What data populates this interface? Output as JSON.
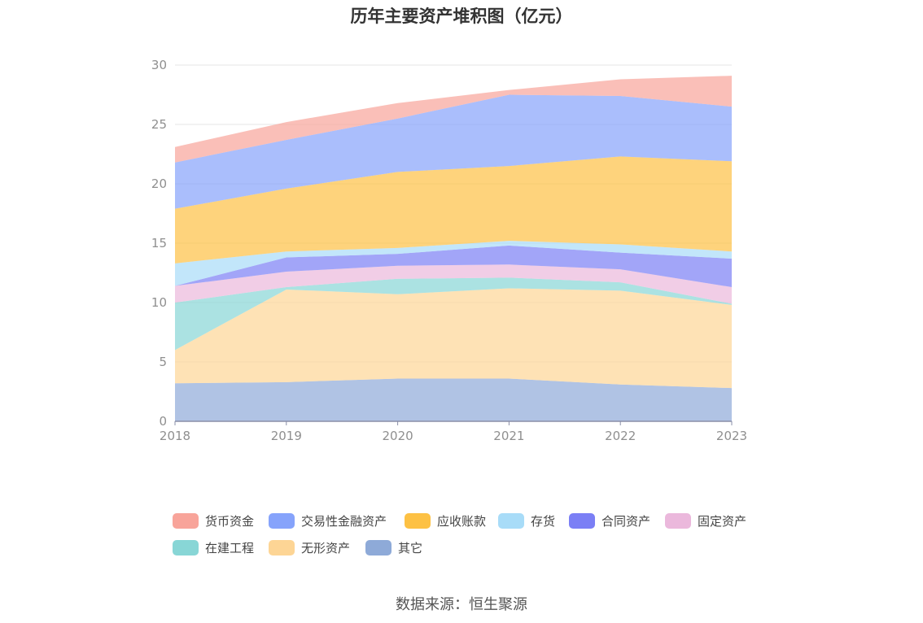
{
  "chart_data": {
    "type": "area",
    "stacked": true,
    "title": "历年主要资产堆积图（亿元）",
    "x": [
      "2018",
      "2019",
      "2020",
      "2021",
      "2022",
      "2023"
    ],
    "ylim": [
      0,
      30
    ],
    "yticks": [
      0,
      5,
      10,
      15,
      20,
      25,
      30
    ],
    "grid": true,
    "legend_position": "bottom",
    "series": [
      {
        "name": "其它",
        "color": "#8eaad8",
        "values": [
          3.2,
          3.3,
          3.6,
          3.6,
          3.1,
          2.8
        ]
      },
      {
        "name": "无形资产",
        "color": "#fdd595",
        "values": [
          2.8,
          7.8,
          7.1,
          7.6,
          7.9,
          7.0
        ]
      },
      {
        "name": "在建工程",
        "color": "#88d6d6",
        "values": [
          4.0,
          0.2,
          1.3,
          0.9,
          0.7,
          0.1
        ]
      },
      {
        "name": "固定资产",
        "color": "#ebb8dc",
        "values": [
          1.4,
          1.3,
          1.1,
          1.1,
          1.1,
          1.4
        ]
      },
      {
        "name": "合同资产",
        "color": "#7b7ff5",
        "values": [
          0.0,
          1.2,
          1.0,
          1.6,
          1.4,
          2.4
        ]
      },
      {
        "name": "存货",
        "color": "#a8dcf8",
        "values": [
          1.9,
          0.5,
          0.5,
          0.4,
          0.7,
          0.6
        ]
      },
      {
        "name": "应收账款",
        "color": "#fdc144",
        "values": [
          4.6,
          5.3,
          6.4,
          6.3,
          7.4,
          7.6
        ]
      },
      {
        "name": "交易性金融资产",
        "color": "#86a3fb",
        "values": [
          3.9,
          4.1,
          4.5,
          6.0,
          5.1,
          4.6
        ]
      },
      {
        "name": "货币资金",
        "color": "#f8a49a",
        "values": [
          1.3,
          1.5,
          1.3,
          0.4,
          1.4,
          2.6
        ]
      }
    ]
  },
  "legend_items": [
    "货币资金",
    "交易性金融资产",
    "应收账款",
    "存货",
    "合同资产",
    "固定资产",
    "在建工程",
    "无形资产",
    "其它"
  ],
  "source": "数据来源：恒生聚源"
}
